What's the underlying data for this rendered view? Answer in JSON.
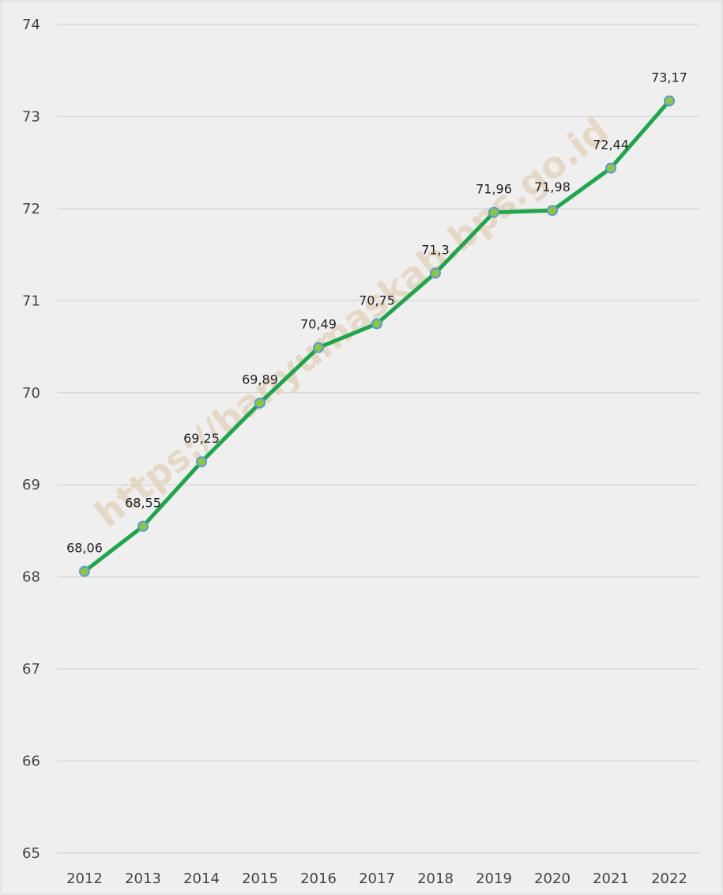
{
  "chart_data": {
    "type": "line",
    "title": "",
    "xlabel": "",
    "ylabel": "",
    "categories": [
      "2012",
      "2013",
      "2014",
      "2015",
      "2016",
      "2017",
      "2018",
      "2019",
      "2020",
      "2021",
      "2022"
    ],
    "series": [
      {
        "values": [
          68.06,
          68.55,
          69.25,
          69.89,
          70.49,
          70.75,
          71.3,
          71.96,
          71.98,
          72.44,
          73.17
        ],
        "value_labels": [
          "68,06",
          "68,55",
          "69,25",
          "69,89",
          "70,49",
          "70,75",
          "71,3",
          "71,96",
          "71,98",
          "72,44",
          "73,17"
        ],
        "color": "#1fa64a",
        "marker_color": "#8dc63f",
        "marker_edge_color": "#5b9bd5"
      }
    ],
    "ylim": [
      65,
      74
    ],
    "yticks": [
      "65",
      "66",
      "67",
      "68",
      "69",
      "70",
      "71",
      "72",
      "73",
      "74"
    ],
    "grid": "horizontal",
    "legend": "none",
    "background_color": "#efefef",
    "grid_color": "#d9d9d9",
    "watermark": "https://banyumaskab.bps.go.id"
  }
}
